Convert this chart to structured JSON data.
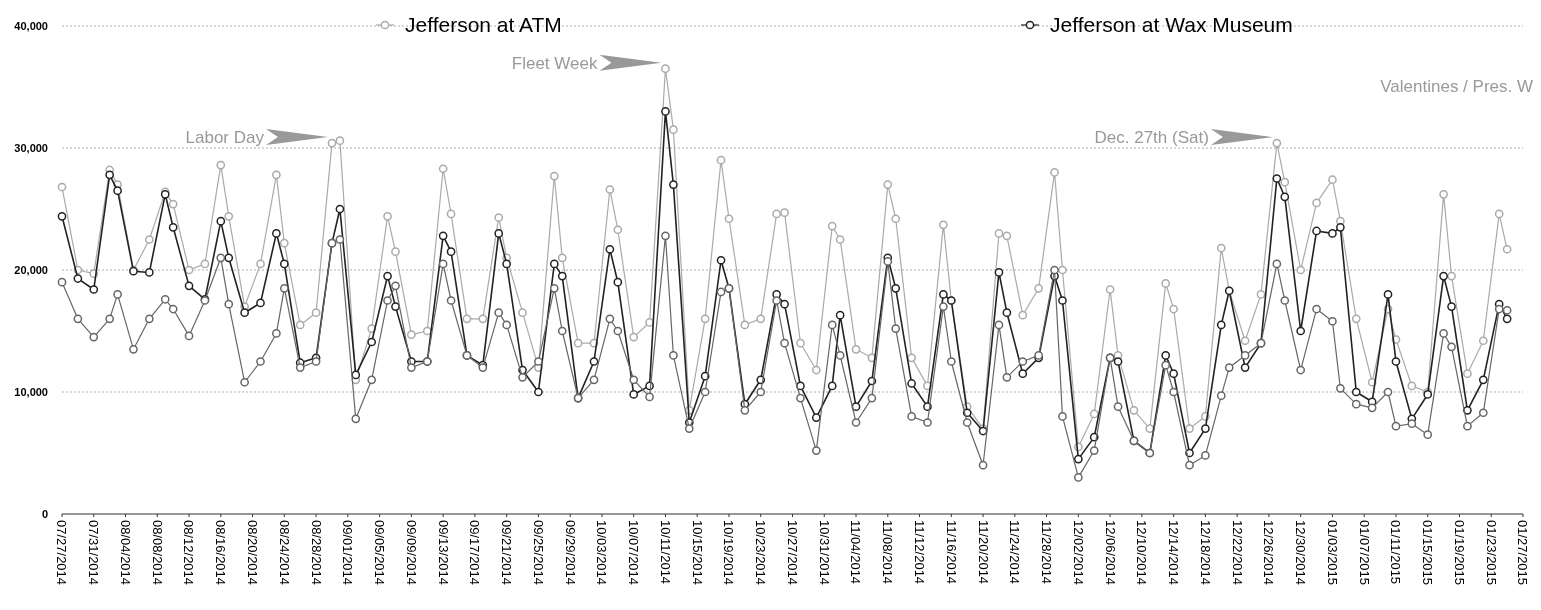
{
  "chart_data": {
    "type": "line",
    "marker": "circle",
    "grid": "y",
    "legend": "top",
    "annotations": [
      {
        "text": "Labor Day",
        "x": "2014-08-30",
        "y": 30400
      },
      {
        "text": "Fleet Week",
        "x": "2014-10-11",
        "y": 36500
      },
      {
        "text": "Dec. 27th (Sat)",
        "x": "2014-12-27",
        "y": 30400
      },
      "Valentines / Pres. W"
    ],
    "x": [
      "2014-07-27",
      "2014-07-29",
      "2014-07-31",
      "2014-08-02",
      "2014-08-03",
      "2014-08-05",
      "2014-08-07",
      "2014-08-09",
      "2014-08-10",
      "2014-08-12",
      "2014-08-14",
      "2014-08-16",
      "2014-08-17",
      "2014-08-19",
      "2014-08-21",
      "2014-08-23",
      "2014-08-24",
      "2014-08-26",
      "2014-08-28",
      "2014-08-30",
      "2014-08-31",
      "2014-09-02",
      "2014-09-04",
      "2014-09-06",
      "2014-09-07",
      "2014-09-09",
      "2014-09-11",
      "2014-09-13",
      "2014-09-14",
      "2014-09-16",
      "2014-09-18",
      "2014-09-20",
      "2014-09-21",
      "2014-09-23",
      "2014-09-25",
      "2014-09-27",
      "2014-09-28",
      "2014-09-30",
      "2014-10-02",
      "2014-10-04",
      "2014-10-05",
      "2014-10-07",
      "2014-10-09",
      "2014-10-11",
      "2014-10-12",
      "2014-10-14",
      "2014-10-16",
      "2014-10-18",
      "2014-10-19",
      "2014-10-21",
      "2014-10-23",
      "2014-10-25",
      "2014-10-26",
      "2014-10-28",
      "2014-10-30",
      "2014-11-01",
      "2014-11-02",
      "2014-11-04",
      "2014-11-06",
      "2014-11-08",
      "2014-11-09",
      "2014-11-11",
      "2014-11-13",
      "2014-11-15",
      "2014-11-16",
      "2014-11-18",
      "2014-11-20",
      "2014-11-22",
      "2014-11-23",
      "2014-11-25",
      "2014-11-27",
      "2014-11-29",
      "2014-11-30",
      "2014-12-02",
      "2014-12-04",
      "2014-12-06",
      "2014-12-07",
      "2014-12-09",
      "2014-12-11",
      "2014-12-13",
      "2014-12-14",
      "2014-12-16",
      "2014-12-18",
      "2014-12-20",
      "2014-12-21",
      "2014-12-23",
      "2014-12-25",
      "2014-12-27",
      "2014-12-28",
      "2014-12-30",
      "2015-01-01",
      "2015-01-03",
      "2015-01-04",
      "2015-01-06",
      "2015-01-08",
      "2015-01-10",
      "2015-01-11",
      "2015-01-13",
      "2015-01-15",
      "2015-01-17",
      "2015-01-18",
      "2015-01-20",
      "2015-01-22",
      "2015-01-24",
      "2015-01-25"
    ],
    "series": [
      {
        "name": "Jefferson at ATM",
        "color": "#aaaaaa",
        "values": [
          26800,
          20000,
          19700,
          28200,
          27000,
          20000,
          22500,
          26400,
          25400,
          20000,
          20500,
          28600,
          24400,
          17000,
          20500,
          27800,
          22200,
          15500,
          16500,
          30400,
          30600,
          11000,
          15200,
          24400,
          21500,
          14700,
          15000,
          28300,
          24600,
          16000,
          16000,
          24300,
          21000,
          16500,
          12000,
          27700,
          21000,
          14000,
          14000,
          26600,
          23300,
          14500,
          15700,
          36500,
          31500,
          8500,
          16000,
          29000,
          24200,
          15500,
          16000,
          24600,
          24700,
          14000,
          11800,
          23600,
          22500,
          13500,
          12800,
          27000,
          24200,
          12800,
          10500,
          23700,
          17500,
          8800,
          7000,
          23000,
          22800,
          16300,
          18500,
          28000,
          20000,
          5500,
          8200,
          18400,
          13000,
          8500,
          7000,
          18900,
          16800,
          7000,
          8000,
          21800,
          18300,
          14200,
          18000,
          30400,
          27200,
          20000,
          25500,
          27400,
          24000,
          16000,
          10800,
          16800,
          14300,
          10500,
          10000,
          26200,
          19500,
          11500,
          14200,
          24600,
          21700
        ]
      },
      {
        "name": "Jefferson at Wax Museum",
        "color": "#222222",
        "values": [
          24400,
          19300,
          18400,
          27800,
          26500,
          19900,
          19800,
          26200,
          23500,
          18700,
          17600,
          24000,
          21000,
          16500,
          17300,
          23000,
          20500,
          12400,
          12800,
          22200,
          25000,
          11400,
          14100,
          19500,
          17000,
          12500,
          12500,
          22800,
          21500,
          13000,
          12200,
          23000,
          20500,
          11800,
          10000,
          20500,
          19500,
          9500,
          12500,
          21700,
          19000,
          9800,
          10500,
          33000,
          27000,
          7500,
          11300,
          20800,
          18500,
          9000,
          11000,
          18000,
          17200,
          10500,
          7900,
          10500,
          16300,
          8800,
          10900,
          21000,
          18500,
          10700,
          8800,
          18000,
          17500,
          8300,
          6800,
          19800,
          16500,
          11500,
          12800,
          19500,
          17500,
          4500,
          6300,
          12800,
          12500,
          6000,
          5000,
          13000,
          11500,
          5000,
          7000,
          15500,
          18300,
          12000,
          14000,
          27500,
          26000,
          15000,
          23200,
          23000,
          23500,
          10000,
          9200,
          18000,
          12500,
          7800,
          9800,
          19500,
          17000,
          8500,
          11000,
          17200,
          16000
        ]
      },
      {
        "color": "#666666",
        "values": [
          19000,
          16000,
          14500,
          16000,
          18000,
          13500,
          16000,
          17600,
          16800,
          14600,
          17500,
          21000,
          17200,
          10800,
          12500,
          14800,
          18500,
          12000,
          12500,
          22200,
          22500,
          7800,
          11000,
          17500,
          18700,
          12000,
          12500,
          20500,
          17500,
          13000,
          12000,
          16500,
          15500,
          11200,
          12500,
          18500,
          15000,
          9500,
          11000,
          16000,
          15000,
          11000,
          9600,
          22800,
          13000,
          7000,
          10000,
          18200,
          18500,
          8500,
          10000,
          17500,
          14000,
          9500,
          5200,
          15500,
          13000,
          7500,
          9500,
          20700,
          15200,
          8000,
          7500,
          17000,
          12500,
          7500,
          4000,
          15500,
          11200,
          12500,
          13000,
          20000,
          8000,
          3000,
          5200,
          12800,
          8800,
          6000,
          5000,
          12200,
          10000,
          4000,
          4800,
          9700,
          12000,
          13000,
          14000,
          20500,
          17500,
          11800,
          16800,
          15800,
          10300,
          9000,
          8700,
          10000,
          7200,
          7400,
          6500,
          14800,
          13700,
          7200,
          8300,
          16800,
          16700
        ]
      }
    ],
    "xlim": [
      "2014-07-27",
      "2015-01-27"
    ],
    "xticks": [
      {
        "value": "2014-07-27",
        "label": "07/27/2014"
      },
      {
        "value": "2014-07-31",
        "label": "07/31/2014"
      },
      {
        "value": "2014-08-04",
        "label": "08/04/2014"
      },
      {
        "value": "2014-08-08",
        "label": "08/08/2014"
      },
      {
        "value": "2014-08-12",
        "label": "08/12/2014"
      },
      {
        "value": "2014-08-16",
        "label": "08/16/2014"
      },
      {
        "value": "2014-08-20",
        "label": "08/20/2014"
      },
      {
        "value": "2014-08-24",
        "label": "08/24/2014"
      },
      {
        "value": "2014-08-28",
        "label": "08/28/2014"
      },
      {
        "value": "2014-09-01",
        "label": "09/01/2014"
      },
      {
        "value": "2014-09-05",
        "label": "09/05/2014"
      },
      {
        "value": "2014-09-09",
        "label": "09/09/2014"
      },
      {
        "value": "2014-09-13",
        "label": "09/13/2014"
      },
      {
        "value": "2014-09-17",
        "label": "09/17/2014"
      },
      {
        "value": "2014-09-21",
        "label": "09/21/2014"
      },
      {
        "value": "2014-09-25",
        "label": "09/25/2014"
      },
      {
        "value": "2014-09-29",
        "label": "09/29/2014"
      },
      {
        "value": "2014-10-03",
        "label": "10/03/2014"
      },
      {
        "value": "2014-10-07",
        "label": "10/07/2014"
      },
      {
        "value": "2014-10-11",
        "label": "10/11/2014"
      },
      {
        "value": "2014-10-15",
        "label": "10/15/2014"
      },
      {
        "value": "2014-10-19",
        "label": "10/19/2014"
      },
      {
        "value": "2014-10-23",
        "label": "10/23/2014"
      },
      {
        "value": "2014-10-27",
        "label": "10/27/2014"
      },
      {
        "value": "2014-10-31",
        "label": "10/31/2014"
      },
      {
        "value": "2014-11-04",
        "label": "11/04/2014"
      },
      {
        "value": "2014-11-08",
        "label": "11/08/2014"
      },
      {
        "value": "2014-11-12",
        "label": "11/12/2014"
      },
      {
        "value": "2014-11-16",
        "label": "11/16/2014"
      },
      {
        "value": "2014-11-20",
        "label": "11/20/2014"
      },
      {
        "value": "2014-11-24",
        "label": "11/24/2014"
      },
      {
        "value": "2014-11-28",
        "label": "11/28/2014"
      },
      {
        "value": "2014-12-02",
        "label": "12/02/2014"
      },
      {
        "value": "2014-12-06",
        "label": "12/06/2014"
      },
      {
        "value": "2014-12-10",
        "label": "12/10/2014"
      },
      {
        "value": "2014-12-14",
        "label": "12/14/2014"
      },
      {
        "value": "2014-12-18",
        "label": "12/18/2014"
      },
      {
        "value": "2014-12-22",
        "label": "12/22/2014"
      },
      {
        "value": "2014-12-26",
        "label": "12/26/2014"
      },
      {
        "value": "2014-12-30",
        "label": "12/30/2014"
      },
      {
        "value": "2015-01-03",
        "label": "01/03/2015"
      },
      {
        "value": "2015-01-07",
        "label": "01/07/2015"
      },
      {
        "value": "2015-01-11",
        "label": "01/11/2015"
      },
      {
        "value": "2015-01-15",
        "label": "01/15/2015"
      },
      {
        "value": "2015-01-19",
        "label": "01/19/2015"
      },
      {
        "value": "2015-01-23",
        "label": "01/23/2015"
      },
      {
        "value": "2015-01-27",
        "label": "01/27/2015"
      }
    ],
    "ylim": [
      0,
      40000
    ],
    "yticks": [
      {
        "value": 0,
        "label": "0"
      },
      {
        "value": 10000,
        "label": "10,000"
      },
      {
        "value": 20000,
        "label": "20,000"
      },
      {
        "value": 30000,
        "label": "30,000"
      },
      {
        "value": 40000,
        "label": "40,000"
      }
    ]
  }
}
